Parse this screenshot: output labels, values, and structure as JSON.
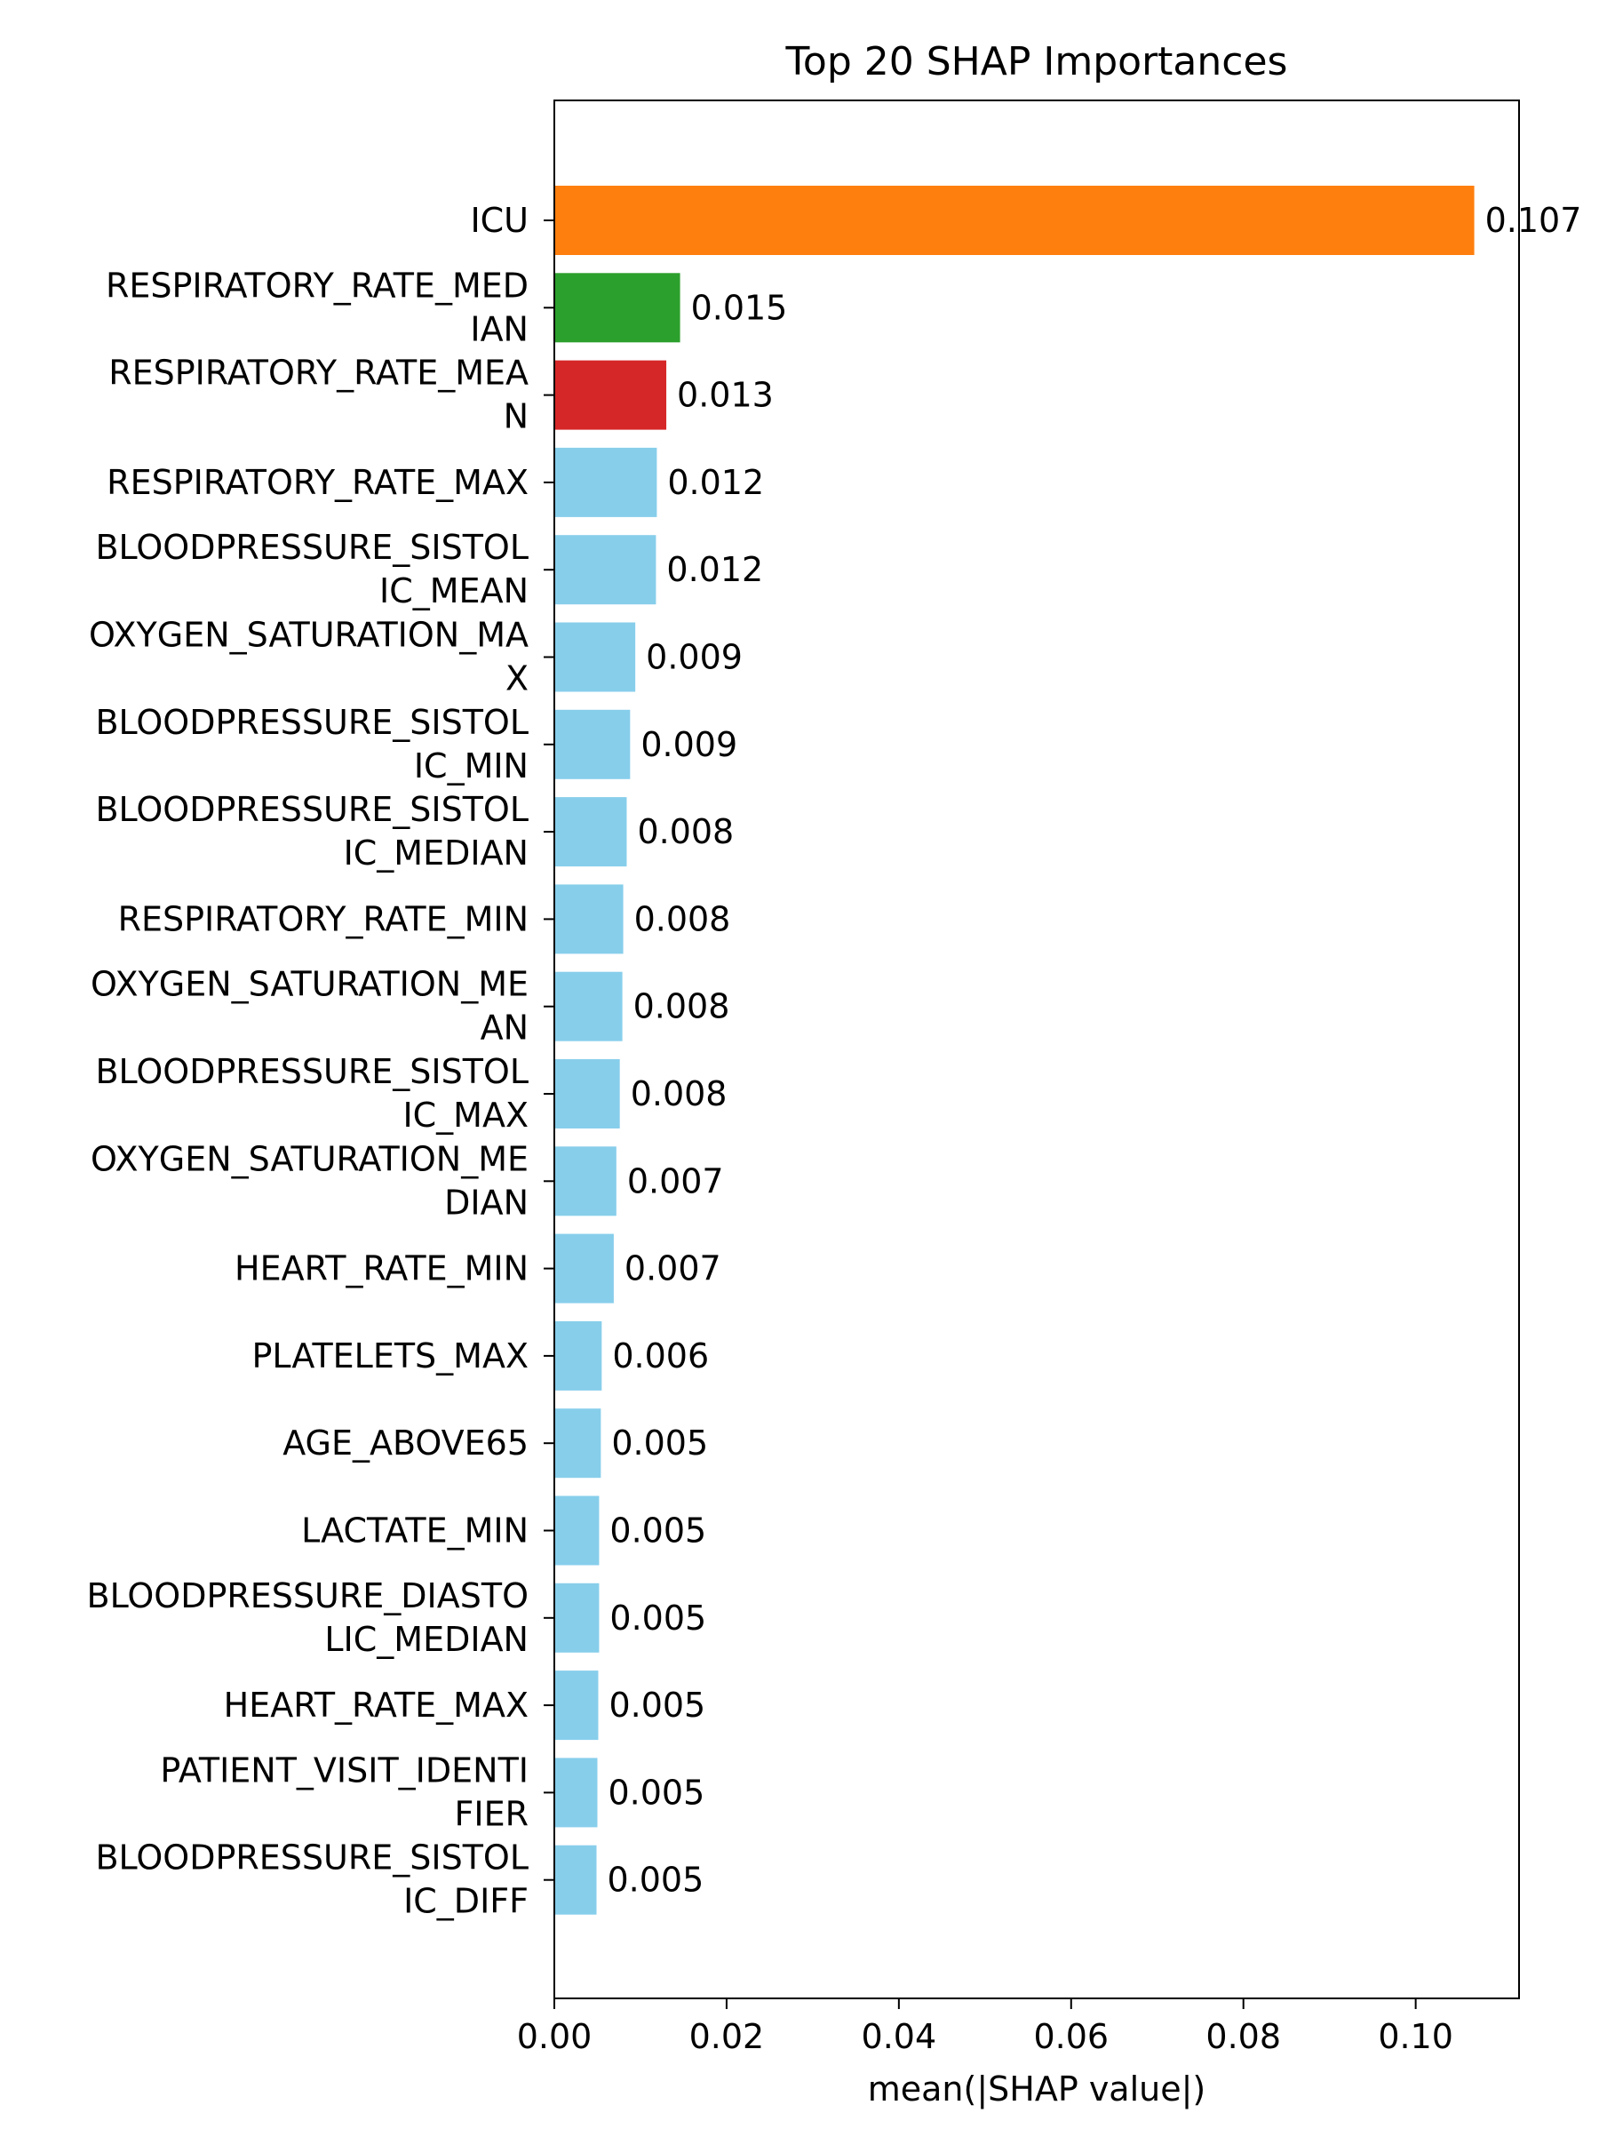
{
  "chart_data": {
    "type": "bar",
    "orientation": "horizontal",
    "title": "Top 20 SHAP Importances",
    "xlabel": "mean(|SHAP value|)",
    "ylabel": "",
    "xlim": [
      0,
      0.112
    ],
    "xticks": [
      0.0,
      0.02,
      0.04,
      0.06,
      0.08,
      0.1
    ],
    "xtick_labels": [
      "0.00",
      "0.02",
      "0.04",
      "0.06",
      "0.08",
      "0.10"
    ],
    "grid": false,
    "categories": [
      [
        "ICU"
      ],
      [
        "RESPIRATORY_RATE_MED",
        "IAN"
      ],
      [
        "RESPIRATORY_RATE_MEA",
        "N"
      ],
      [
        "RESPIRATORY_RATE_MAX"
      ],
      [
        "BLOODPRESSURE_SISTOL",
        "IC_MEAN"
      ],
      [
        "OXYGEN_SATURATION_MA",
        "X"
      ],
      [
        "BLOODPRESSURE_SISTOL",
        "IC_MIN"
      ],
      [
        "BLOODPRESSURE_SISTOL",
        "IC_MEDIAN"
      ],
      [
        "RESPIRATORY_RATE_MIN"
      ],
      [
        "OXYGEN_SATURATION_ME",
        "AN"
      ],
      [
        "BLOODPRESSURE_SISTOL",
        "IC_MAX"
      ],
      [
        "OXYGEN_SATURATION_ME",
        "DIAN"
      ],
      [
        "HEART_RATE_MIN"
      ],
      [
        "PLATELETS_MAX"
      ],
      [
        "AGE_ABOVE65"
      ],
      [
        "LACTATE_MIN"
      ],
      [
        "BLOODPRESSURE_DIASTO",
        "LIC_MEDIAN"
      ],
      [
        "HEART_RATE_MAX"
      ],
      [
        "PATIENT_VISIT_IDENTI",
        "FIER"
      ],
      [
        "BLOODPRESSURE_SISTOL",
        "IC_DIFF"
      ]
    ],
    "values": [
      0.1068,
      0.0146,
      0.013,
      0.0119,
      0.0118,
      0.0094,
      0.0088,
      0.0084,
      0.008,
      0.0079,
      0.0076,
      0.0072,
      0.0069,
      0.0055,
      0.0054,
      0.0052,
      0.0052,
      0.0051,
      0.005,
      0.0049
    ],
    "value_labels": [
      "0.107",
      "0.015",
      "0.013",
      "0.012",
      "0.012",
      "0.009",
      "0.009",
      "0.008",
      "0.008",
      "0.008",
      "0.008",
      "0.007",
      "0.007",
      "0.006",
      "0.005",
      "0.005",
      "0.005",
      "0.005",
      "0.005",
      "0.005"
    ],
    "colors": [
      "#ff7f0e",
      "#2ca02c",
      "#d62728",
      "#87ceeb",
      "#87ceeb",
      "#87ceeb",
      "#87ceeb",
      "#87ceeb",
      "#87ceeb",
      "#87ceeb",
      "#87ceeb",
      "#87ceeb",
      "#87ceeb",
      "#87ceeb",
      "#87ceeb",
      "#87ceeb",
      "#87ceeb",
      "#87ceeb",
      "#87ceeb",
      "#87ceeb"
    ]
  }
}
